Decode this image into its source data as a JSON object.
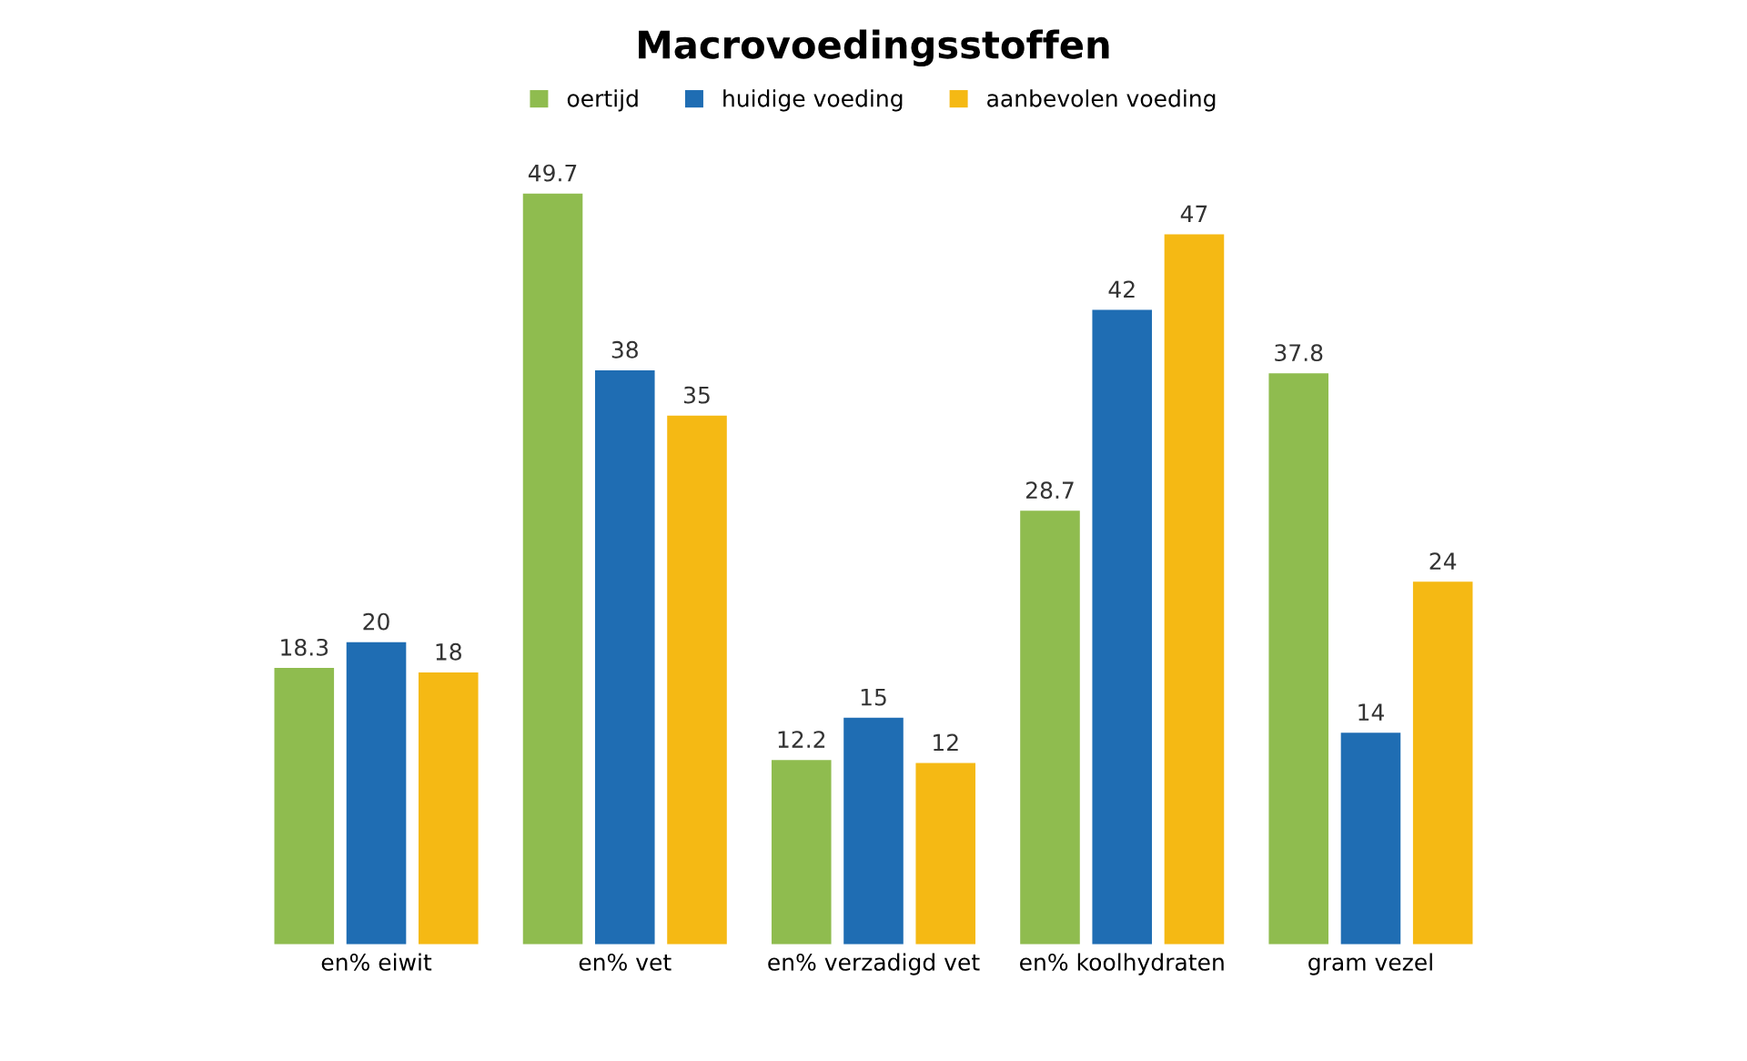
{
  "chart_data": {
    "type": "bar",
    "title": "Macrovoedingsstoffen",
    "categories": [
      "en% eiwit",
      "en% vet",
      "en% verzadigd vet",
      "en% koolhydraten",
      "gram vezel"
    ],
    "series": [
      {
        "name": "oertijd",
        "color": "#8fbc4f",
        "values": [
          18.3,
          49.7,
          12.2,
          28.7,
          37.8
        ]
      },
      {
        "name": "huidige voeding",
        "color": "#1f6db3",
        "values": [
          20,
          38,
          15,
          42,
          14
        ]
      },
      {
        "name": "aanbevolen voeding",
        "color": "#f5b914",
        "values": [
          18,
          35,
          12,
          47,
          24
        ]
      }
    ],
    "data_labels": true,
    "legend": "top"
  }
}
